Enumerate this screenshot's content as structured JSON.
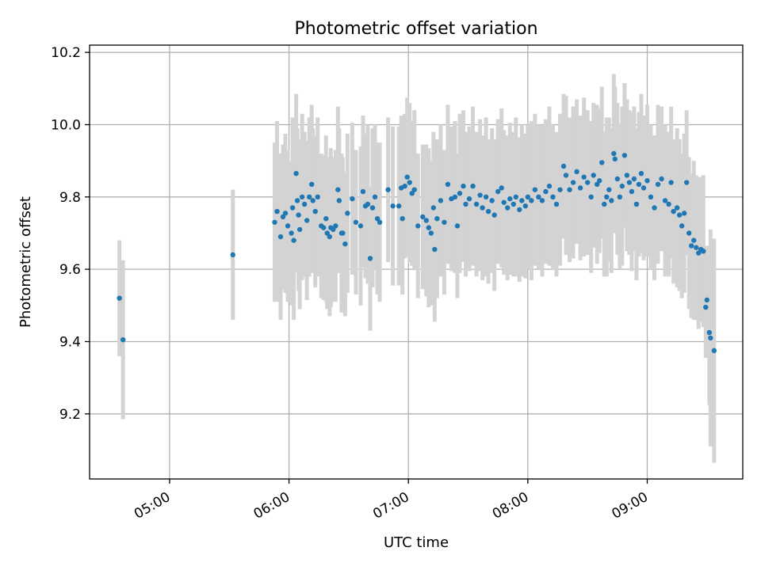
{
  "chart_data": {
    "type": "scatter",
    "title": "Photometric offset variation",
    "xlabel": "UTC time",
    "ylabel": "Photometric offset",
    "xlim_hours": [
      4.33,
      9.8
    ],
    "ylim": [
      9.02,
      10.22
    ],
    "grid": true,
    "x_ticks": [
      {
        "value": 5,
        "label": "05:00"
      },
      {
        "value": 6,
        "label": "06:00"
      },
      {
        "value": 7,
        "label": "07:00"
      },
      {
        "value": 8,
        "label": "08:00"
      },
      {
        "value": 9,
        "label": "09:00"
      }
    ],
    "y_ticks": [
      {
        "value": 9.2,
        "label": "9.2"
      },
      {
        "value": 9.4,
        "label": "9.4"
      },
      {
        "value": 9.6,
        "label": "9.6"
      },
      {
        "value": 9.8,
        "label": "9.8"
      },
      {
        "value": 10.0,
        "label": "10.0"
      },
      {
        "value": 10.2,
        "label": "10.2"
      }
    ],
    "colors": {
      "points": "#1f77b4",
      "errorbars": "#d3d3d3"
    },
    "series": [
      {
        "name": "offset",
        "points": [
          [
            4.58,
            9.52,
            0.16
          ],
          [
            4.61,
            9.405,
            0.22
          ],
          [
            5.53,
            9.64,
            0.18
          ],
          [
            5.88,
            9.73,
            0.22
          ],
          [
            5.9,
            9.76,
            0.25
          ],
          [
            5.93,
            9.69,
            0.23
          ],
          [
            5.95,
            9.745,
            0.2
          ],
          [
            5.97,
            9.755,
            0.22
          ],
          [
            5.99,
            9.72,
            0.21
          ],
          [
            6.02,
            9.7,
            0.2
          ],
          [
            6.03,
            9.77,
            0.25
          ],
          [
            6.04,
            9.68,
            0.22
          ],
          [
            6.06,
            9.865,
            0.22
          ],
          [
            6.07,
            9.79,
            0.2
          ],
          [
            6.08,
            9.75,
            0.21
          ],
          [
            6.09,
            9.71,
            0.22
          ],
          [
            6.11,
            9.8,
            0.23
          ],
          [
            6.13,
            9.78,
            0.2
          ],
          [
            6.15,
            9.735,
            0.22
          ],
          [
            6.17,
            9.8,
            0.22
          ],
          [
            6.19,
            9.835,
            0.22
          ],
          [
            6.2,
            9.79,
            0.2
          ],
          [
            6.22,
            9.76,
            0.21
          ],
          [
            6.24,
            9.8,
            0.22
          ],
          [
            6.27,
            9.72,
            0.2
          ],
          [
            6.29,
            9.715,
            0.2
          ],
          [
            6.31,
            9.74,
            0.23
          ],
          [
            6.32,
            9.7,
            0.21
          ],
          [
            6.34,
            9.69,
            0.22
          ],
          [
            6.35,
            9.715,
            0.22
          ],
          [
            6.37,
            9.71,
            0.2
          ],
          [
            6.39,
            9.72,
            0.21
          ],
          [
            6.41,
            9.82,
            0.23
          ],
          [
            6.42,
            9.79,
            0.2
          ],
          [
            6.44,
            9.7,
            0.22
          ],
          [
            6.45,
            9.7,
            0.21
          ],
          [
            6.47,
            9.67,
            0.2
          ],
          [
            6.49,
            9.755,
            0.22
          ],
          [
            6.53,
            9.795,
            0.21
          ],
          [
            6.56,
            9.73,
            0.2
          ],
          [
            6.6,
            9.72,
            0.22
          ],
          [
            6.62,
            9.815,
            0.21
          ],
          [
            6.64,
            9.775,
            0.2
          ],
          [
            6.66,
            9.78,
            0.22
          ],
          [
            6.68,
            9.63,
            0.2
          ],
          [
            6.7,
            9.77,
            0.22
          ],
          [
            6.72,
            9.8,
            0.2
          ],
          [
            6.74,
            9.74,
            0.21
          ],
          [
            6.76,
            9.73,
            0.22
          ],
          [
            6.83,
            9.82,
            0.2
          ],
          [
            6.87,
            9.775,
            0.22
          ],
          [
            6.92,
            9.775,
            0.22
          ],
          [
            6.94,
            9.825,
            0.2
          ],
          [
            6.95,
            9.74,
            0.21
          ],
          [
            6.97,
            9.83,
            0.2
          ],
          [
            6.99,
            9.855,
            0.22
          ],
          [
            7.01,
            9.84,
            0.22
          ],
          [
            7.03,
            9.81,
            0.2
          ],
          [
            7.05,
            9.82,
            0.22
          ],
          [
            7.08,
            9.72,
            0.2
          ],
          [
            7.12,
            9.745,
            0.2
          ],
          [
            7.15,
            9.735,
            0.21
          ],
          [
            7.17,
            9.715,
            0.22
          ],
          [
            7.19,
            9.7,
            0.2
          ],
          [
            7.21,
            9.77,
            0.21
          ],
          [
            7.22,
            9.655,
            0.2
          ],
          [
            7.24,
            9.74,
            0.22
          ],
          [
            7.27,
            9.79,
            0.21
          ],
          [
            7.3,
            9.73,
            0.2
          ],
          [
            7.33,
            9.835,
            0.22
          ],
          [
            7.36,
            9.795,
            0.2
          ],
          [
            7.39,
            9.8,
            0.21
          ],
          [
            7.41,
            9.72,
            0.2
          ],
          [
            7.43,
            9.81,
            0.22
          ],
          [
            7.46,
            9.83,
            0.21
          ],
          [
            7.48,
            9.78,
            0.2
          ],
          [
            7.51,
            9.795,
            0.2
          ],
          [
            7.54,
            9.83,
            0.22
          ],
          [
            7.57,
            9.78,
            0.2
          ],
          [
            7.6,
            9.805,
            0.21
          ],
          [
            7.62,
            9.77,
            0.2
          ],
          [
            7.65,
            9.8,
            0.22
          ],
          [
            7.67,
            9.76,
            0.2
          ],
          [
            7.7,
            9.79,
            0.2
          ],
          [
            7.72,
            9.75,
            0.21
          ],
          [
            7.75,
            9.815,
            0.2
          ],
          [
            7.78,
            9.825,
            0.22
          ],
          [
            7.8,
            9.785,
            0.2
          ],
          [
            7.83,
            9.77,
            0.2
          ],
          [
            7.85,
            9.795,
            0.21
          ],
          [
            7.88,
            9.78,
            0.2
          ],
          [
            7.9,
            9.8,
            0.22
          ],
          [
            7.93,
            9.765,
            0.2
          ],
          [
            7.95,
            9.79,
            0.21
          ],
          [
            7.98,
            9.775,
            0.2
          ],
          [
            8.0,
            9.8,
            0.2
          ],
          [
            8.03,
            9.79,
            0.22
          ],
          [
            8.06,
            9.82,
            0.21
          ],
          [
            8.09,
            9.8,
            0.2
          ],
          [
            8.12,
            9.79,
            0.21
          ],
          [
            8.15,
            9.815,
            0.2
          ],
          [
            8.18,
            9.83,
            0.22
          ],
          [
            8.21,
            9.8,
            0.2
          ],
          [
            8.24,
            9.78,
            0.2
          ],
          [
            8.27,
            9.82,
            0.21
          ],
          [
            8.3,
            9.885,
            0.2
          ],
          [
            8.32,
            9.86,
            0.22
          ],
          [
            8.35,
            9.82,
            0.2
          ],
          [
            8.38,
            9.84,
            0.21
          ],
          [
            8.41,
            9.87,
            0.2
          ],
          [
            8.44,
            9.825,
            0.2
          ],
          [
            8.47,
            9.855,
            0.22
          ],
          [
            8.5,
            9.84,
            0.2
          ],
          [
            8.53,
            9.8,
            0.21
          ],
          [
            8.55,
            9.86,
            0.2
          ],
          [
            8.58,
            9.835,
            0.22
          ],
          [
            8.6,
            9.845,
            0.2
          ],
          [
            8.62,
            9.895,
            0.21
          ],
          [
            8.64,
            9.78,
            0.2
          ],
          [
            8.66,
            9.8,
            0.22
          ],
          [
            8.68,
            9.82,
            0.2
          ],
          [
            8.7,
            9.79,
            0.2
          ],
          [
            8.72,
            9.92,
            0.22
          ],
          [
            8.73,
            9.905,
            0.2
          ],
          [
            8.75,
            9.85,
            0.21
          ],
          [
            8.77,
            9.8,
            0.2
          ],
          [
            8.79,
            9.83,
            0.22
          ],
          [
            8.81,
            9.915,
            0.2
          ],
          [
            8.83,
            9.86,
            0.21
          ],
          [
            8.85,
            9.84,
            0.2
          ],
          [
            8.87,
            9.815,
            0.22
          ],
          [
            8.89,
            9.85,
            0.2
          ],
          [
            8.91,
            9.78,
            0.21
          ],
          [
            8.93,
            9.835,
            0.2
          ],
          [
            8.95,
            9.865,
            0.22
          ],
          [
            8.97,
            9.825,
            0.2
          ],
          [
            9.0,
            9.845,
            0.21
          ],
          [
            9.03,
            9.8,
            0.2
          ],
          [
            9.06,
            9.77,
            0.2
          ],
          [
            9.09,
            9.835,
            0.22
          ],
          [
            9.12,
            9.85,
            0.2
          ],
          [
            9.15,
            9.79,
            0.21
          ],
          [
            9.18,
            9.78,
            0.2
          ],
          [
            9.2,
            9.84,
            0.21
          ],
          [
            9.22,
            9.76,
            0.2
          ],
          [
            9.25,
            9.77,
            0.22
          ],
          [
            9.27,
            9.75,
            0.21
          ],
          [
            9.29,
            9.72,
            0.2
          ],
          [
            9.31,
            9.755,
            0.22
          ],
          [
            9.33,
            9.84,
            0.2
          ],
          [
            9.35,
            9.7,
            0.21
          ],
          [
            9.37,
            9.665,
            0.2
          ],
          [
            9.39,
            9.68,
            0.22
          ],
          [
            9.41,
            9.66,
            0.2
          ],
          [
            9.43,
            9.645,
            0.21
          ],
          [
            9.45,
            9.655,
            0.2
          ],
          [
            9.47,
            9.65,
            0.21
          ],
          [
            9.49,
            9.495,
            0.14
          ],
          [
            9.5,
            9.515,
            0.15
          ],
          [
            9.52,
            9.425,
            0.2
          ],
          [
            9.53,
            9.41,
            0.3
          ],
          [
            9.56,
            9.375,
            0.31
          ]
        ]
      }
    ]
  }
}
